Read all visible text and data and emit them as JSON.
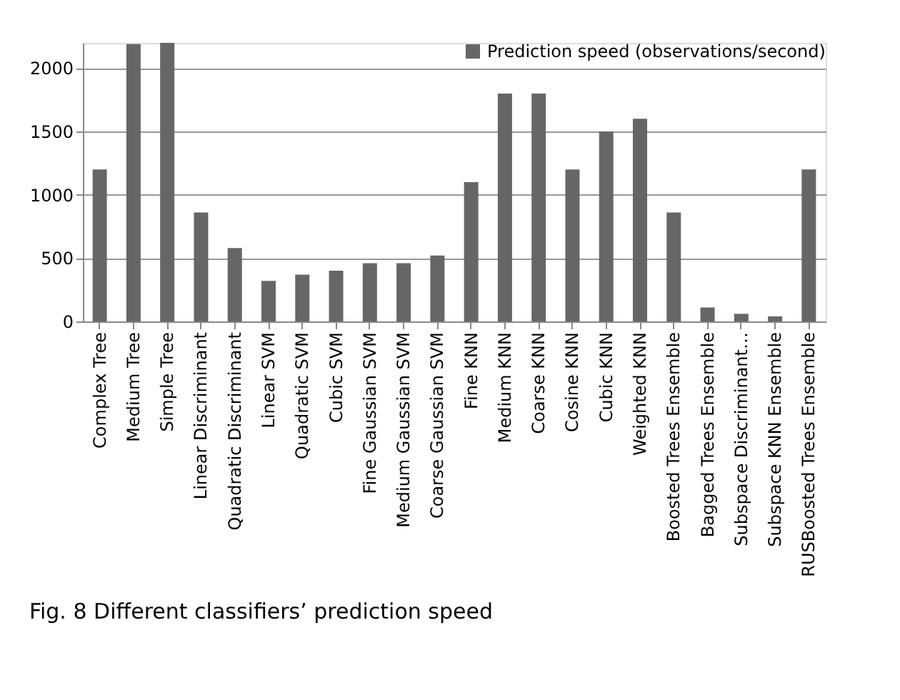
{
  "chart_data": {
    "type": "bar",
    "annotations": [
      "Fig. 8  Different classifiers’ prediction speed"
    ],
    "categories": [
      "Complex Tree",
      "Medium Tree",
      "Simple Tree",
      "Linear Discriminant",
      "Quadratic Discriminant",
      "Linear SVM",
      "Quadratic SVM",
      "Cubic SVM",
      "Fine Gaussian SVM",
      "Medium Gaussian SVM",
      "Coarse Gaussian SVM",
      "Fine KNN",
      "Medium KNN",
      "Coarse KNN",
      "Cosine KNN",
      "Cubic KNN",
      "Weighted KNN",
      "Boosted Trees Ensemble",
      "Bagged Trees  Ensemble",
      "Subspace Discriminant…",
      "Subspace KNN  Ensemble",
      "RUSBoosted Trees  Ensemble"
    ],
    "series": [
      {
        "name": "Prediction speed (observations/second)",
        "color": "#666666",
        "values": [
          1200,
          2190,
          2200,
          860,
          580,
          320,
          370,
          400,
          460,
          460,
          520,
          1100,
          1800,
          1800,
          1200,
          1500,
          1600,
          860,
          110,
          60,
          40,
          1200
        ]
      }
    ],
    "ylim": [
      0,
      2200
    ],
    "yticks": [
      0,
      500,
      1000,
      1500,
      2000
    ],
    "grid": "y",
    "legend": "top right"
  }
}
